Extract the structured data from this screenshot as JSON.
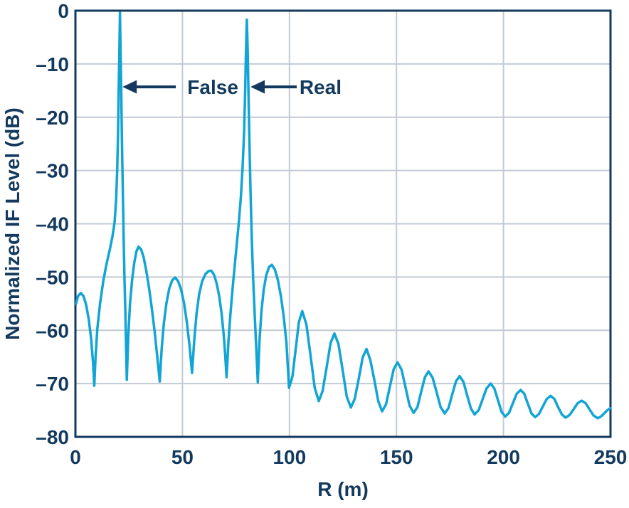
{
  "figure": {
    "background": "#FFFFFF",
    "navy": "#133A5E",
    "curve_color": "#12A5D4",
    "grid_color": "#C2CAD4"
  },
  "chart_data": {
    "type": "line",
    "title": "",
    "xlabel": "R (m)",
    "ylabel": "Normalized IF Level (dB)",
    "xlim": [
      0,
      250
    ],
    "ylim": [
      -80,
      0
    ],
    "grid": true,
    "legend": "none",
    "x_ticks": {
      "values": [
        0,
        50,
        100,
        150,
        200,
        250
      ],
      "labels": [
        "0",
        "50",
        "100",
        "150",
        "200",
        "250"
      ]
    },
    "y_ticks": {
      "values": [
        0,
        -10,
        -20,
        -30,
        -40,
        -50,
        -60,
        -70,
        -80
      ],
      "labels": [
        "0",
        "–10",
        "–20",
        "–30",
        "–40",
        "–50",
        "–60",
        "–70",
        "–80"
      ]
    },
    "annotations": [
      {
        "label": "False",
        "peak_x_m": 20.8,
        "peak_db": -0.4,
        "arrow_tip_x_m": 22.0,
        "arrow_tail_x_m": 46.9,
        "text_center_x_m": 64.2,
        "y_db": -14.3
      },
      {
        "label": "Real",
        "peak_x_m": 80.1,
        "peak_db": -1.7,
        "arrow_tip_x_m": 81.8,
        "arrow_tail_x_m": 103.4,
        "text_center_x_m": 114.5,
        "y_db": -14.3
      }
    ],
    "series": [
      {
        "name": "Normalized IF level",
        "color": "#12A5D4",
        "points": [
          [
            0.3,
            -55
          ],
          [
            1.2,
            -53.6
          ],
          [
            2.5,
            -53
          ],
          [
            3.8,
            -53.6
          ],
          [
            5,
            -55.2
          ],
          [
            6.2,
            -57.8
          ],
          [
            7.3,
            -61.5
          ],
          [
            8.2,
            -66
          ],
          [
            8.8,
            -70.4
          ],
          [
            9.4,
            -65
          ],
          [
            10.2,
            -59.8
          ],
          [
            11.5,
            -55
          ],
          [
            13,
            -50.8
          ],
          [
            14.5,
            -47.6
          ],
          [
            16,
            -45
          ],
          [
            17.3,
            -42.4
          ],
          [
            18.3,
            -39.8
          ],
          [
            19,
            -35.5
          ],
          [
            19.5,
            -30
          ],
          [
            19.9,
            -23
          ],
          [
            20.2,
            -15
          ],
          [
            20.5,
            -8
          ],
          [
            20.8,
            -0.4
          ],
          [
            21.1,
            -8
          ],
          [
            21.4,
            -15
          ],
          [
            21.7,
            -24
          ],
          [
            22.1,
            -33
          ],
          [
            22.5,
            -42
          ],
          [
            22.9,
            -50
          ],
          [
            23.4,
            -58
          ],
          [
            24,
            -69.3
          ],
          [
            24.7,
            -61
          ],
          [
            25.5,
            -55
          ],
          [
            26.5,
            -50.5
          ],
          [
            27.5,
            -47.3
          ],
          [
            28.5,
            -45.2
          ],
          [
            29.5,
            -44.3
          ],
          [
            30.7,
            -44.8
          ],
          [
            31.8,
            -46.2
          ],
          [
            33,
            -48.6
          ],
          [
            34.3,
            -51.8
          ],
          [
            35.6,
            -55.6
          ],
          [
            37,
            -60.2
          ],
          [
            38.2,
            -64.8
          ],
          [
            39.4,
            -69.6
          ],
          [
            40.3,
            -63.5
          ],
          [
            41.3,
            -58.8
          ],
          [
            42.5,
            -55
          ],
          [
            43.8,
            -52.2
          ],
          [
            45.2,
            -50.6
          ],
          [
            46.6,
            -50.1
          ],
          [
            48,
            -50.8
          ],
          [
            49.4,
            -52.4
          ],
          [
            50.8,
            -55
          ],
          [
            52.1,
            -58.6
          ],
          [
            53.3,
            -62.8
          ],
          [
            54.5,
            -68
          ],
          [
            55.5,
            -62
          ],
          [
            56.6,
            -56.8
          ],
          [
            57.8,
            -53.2
          ],
          [
            59.2,
            -50.8
          ],
          [
            60.8,
            -49.4
          ],
          [
            62.2,
            -48.9
          ],
          [
            63.5,
            -48.8
          ],
          [
            64.8,
            -49.6
          ],
          [
            66,
            -51.2
          ],
          [
            67.2,
            -53.6
          ],
          [
            68.3,
            -56.8
          ],
          [
            69.3,
            -61
          ],
          [
            70,
            -64.8
          ],
          [
            70.6,
            -68.8
          ],
          [
            71.5,
            -62
          ],
          [
            72.5,
            -56.5
          ],
          [
            73.8,
            -50.5
          ],
          [
            75.1,
            -45
          ],
          [
            76.3,
            -40
          ],
          [
            77.3,
            -35
          ],
          [
            78.1,
            -29.5
          ],
          [
            78.8,
            -23
          ],
          [
            79.3,
            -15.5
          ],
          [
            79.7,
            -7.5
          ],
          [
            80.1,
            -1.7
          ],
          [
            80.5,
            -7.5
          ],
          [
            80.9,
            -16
          ],
          [
            81.3,
            -25
          ],
          [
            81.8,
            -34
          ],
          [
            82.4,
            -43
          ],
          [
            83,
            -50
          ],
          [
            83.8,
            -57.5
          ],
          [
            84.5,
            -63.5
          ],
          [
            85.2,
            -69.8
          ],
          [
            86,
            -62
          ],
          [
            86.9,
            -56.5
          ],
          [
            88,
            -52.3
          ],
          [
            89.2,
            -49.6
          ],
          [
            90.5,
            -48.1
          ],
          [
            91.8,
            -47.7
          ],
          [
            93.2,
            -48.6
          ],
          [
            94.6,
            -50.6
          ],
          [
            96,
            -53.6
          ],
          [
            97.3,
            -57.4
          ],
          [
            98.6,
            -62.4
          ],
          [
            99.8,
            -70.8
          ],
          [
            101.4,
            -68.7
          ],
          [
            102.9,
            -63.6
          ],
          [
            104.4,
            -58.5
          ],
          [
            106,
            -56.4
          ],
          [
            107.9,
            -58.9
          ],
          [
            109.9,
            -64.9
          ],
          [
            111.8,
            -70.8
          ],
          [
            113.7,
            -73.3
          ],
          [
            115.5,
            -71.4
          ],
          [
            117.4,
            -66.9
          ],
          [
            119.2,
            -62.4
          ],
          [
            121,
            -60.6
          ],
          [
            122.9,
            -62.6
          ],
          [
            124.9,
            -67.6
          ],
          [
            126.8,
            -72.5
          ],
          [
            128.7,
            -74.5
          ],
          [
            130.5,
            -72.9
          ],
          [
            132.4,
            -69
          ],
          [
            134.2,
            -65.1
          ],
          [
            136,
            -63.5
          ],
          [
            137.8,
            -65.6
          ],
          [
            139.7,
            -69.4
          ],
          [
            141.5,
            -73.3
          ],
          [
            143.3,
            -75.2
          ],
          [
            145.1,
            -73.9
          ],
          [
            146.9,
            -70.6
          ],
          [
            148.7,
            -67.3
          ],
          [
            150.5,
            -66
          ],
          [
            152.4,
            -67.4
          ],
          [
            154.3,
            -70.8
          ],
          [
            156.1,
            -74.1
          ],
          [
            158,
            -75.5
          ],
          [
            159.8,
            -74.4
          ],
          [
            161.5,
            -71.6
          ],
          [
            163.3,
            -68.8
          ],
          [
            165,
            -67.7
          ],
          [
            166.9,
            -68.9
          ],
          [
            168.8,
            -71.7
          ],
          [
            170.6,
            -74.4
          ],
          [
            172.5,
            -75.6
          ],
          [
            174.3,
            -74.6
          ],
          [
            176,
            -72.1
          ],
          [
            177.8,
            -69.6
          ],
          [
            179.5,
            -68.6
          ],
          [
            181.3,
            -69.7
          ],
          [
            183,
            -72.2
          ],
          [
            184.8,
            -74.7
          ],
          [
            186.5,
            -75.8
          ],
          [
            188.4,
            -75
          ],
          [
            190.3,
            -72.9
          ],
          [
            192.1,
            -70.9
          ],
          [
            194,
            -70
          ],
          [
            195.7,
            -70.9
          ],
          [
            197.4,
            -73.1
          ],
          [
            199.1,
            -75.3
          ],
          [
            200.8,
            -76.2
          ],
          [
            202.6,
            -75.5
          ],
          [
            204.4,
            -73.7
          ],
          [
            206.2,
            -71.9
          ],
          [
            208,
            -71.2
          ],
          [
            209.7,
            -71.9
          ],
          [
            211.4,
            -73.8
          ],
          [
            213.1,
            -75.6
          ],
          [
            214.8,
            -76.3
          ],
          [
            216.6,
            -75.7
          ],
          [
            218.4,
            -74.3
          ],
          [
            220.2,
            -72.9
          ],
          [
            222,
            -72.3
          ],
          [
            223.8,
            -72.9
          ],
          [
            225.5,
            -74.4
          ],
          [
            227.3,
            -75.8
          ],
          [
            229,
            -76.4
          ],
          [
            230.9,
            -75.9
          ],
          [
            232.8,
            -74.8
          ],
          [
            234.6,
            -73.7
          ],
          [
            236.5,
            -73.2
          ],
          [
            238.4,
            -73.7
          ],
          [
            240.3,
            -74.9
          ],
          [
            242.1,
            -76
          ],
          [
            244,
            -76.5
          ],
          [
            245.5,
            -76.2
          ],
          [
            247,
            -75.6
          ],
          [
            248.5,
            -75
          ],
          [
            250,
            -74.6
          ]
        ]
      }
    ]
  }
}
